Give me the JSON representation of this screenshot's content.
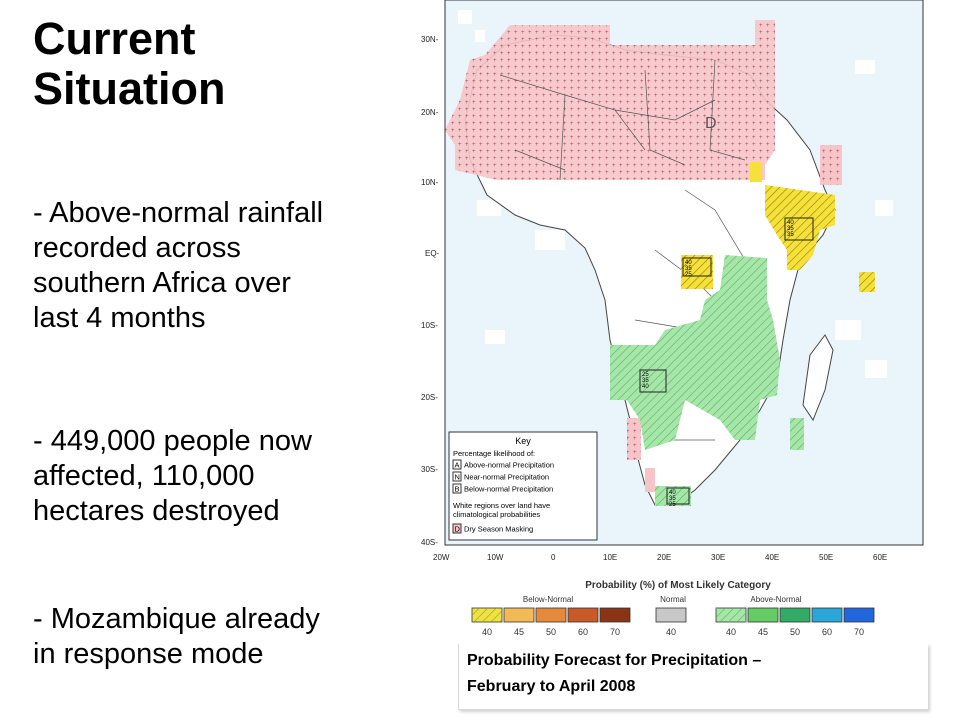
{
  "slide": {
    "title_line1": "Current",
    "title_line2": "Situation",
    "bullets": [
      {
        "l1": "- Above-normal rainfall",
        "l2": "recorded across",
        "l3": "southern Africa over",
        "l4": "last 4 months"
      },
      {
        "l1": "- 449,000 people now",
        "l2": "affected, 110,000",
        "l3": "hectares destroyed"
      },
      {
        "l1": "- Mozambique already",
        "l2": "in response mode"
      }
    ]
  },
  "map": {
    "lat_labels": [
      "30N-",
      "20N-",
      "10N-",
      "EQ-",
      "10S-",
      "20S-",
      "30S-",
      "40S-"
    ],
    "lon_labels": [
      "20W",
      "10W",
      "0",
      "10E",
      "20E",
      "30E",
      "40E",
      "50E",
      "60E"
    ],
    "dry_mask_label": "D",
    "region_labels": [
      {
        "label": "40\n35\n35"
      },
      {
        "label": "40\n35\n25"
      },
      {
        "label": "25\n35\n40"
      },
      {
        "label": "40\n35\n25"
      }
    ],
    "key": {
      "title": "Key",
      "subtitle": "Percentage likelihood of:",
      "entries": [
        {
          "letter": "A",
          "text": "Above-normal Precipitation"
        },
        {
          "letter": "N",
          "text": "Near-normal Precipitation"
        },
        {
          "letter": "B",
          "text": "Below-normal Precipitation"
        }
      ],
      "white_note_l1": "White regions over land have",
      "white_note_l2": "climatological probabilities",
      "dry_letter": "D",
      "dry_text": "Dry Season Masking"
    },
    "colors": {
      "below": "#f6e03a",
      "above": "#a6e7a8",
      "dry": "#f7c4c8",
      "ocean": "#e9f4fb"
    }
  },
  "legend": {
    "title": "Probability (%) of Most Likely Category",
    "below_label": "Below-Normal",
    "normal_label": "Normal",
    "above_label": "Above-Normal",
    "below_ticks": [
      "40",
      "45",
      "50",
      "60",
      "70"
    ],
    "normal_ticks": [
      "40"
    ],
    "above_ticks": [
      "40",
      "45",
      "50",
      "60",
      "70"
    ],
    "below_colors": [
      "#f6e03a",
      "#f2b957",
      "#e58a3b",
      "#c85a2a",
      "#8a3416"
    ],
    "normal_colors": [
      "#c8c8c8"
    ],
    "above_colors": [
      "#a6e7a8",
      "#66cc66",
      "#33aa66",
      "#2aa6d8",
      "#2266dd"
    ]
  },
  "caption": {
    "line1": "Probability Forecast for Precipitation –",
    "line2": "February to April 2008"
  }
}
